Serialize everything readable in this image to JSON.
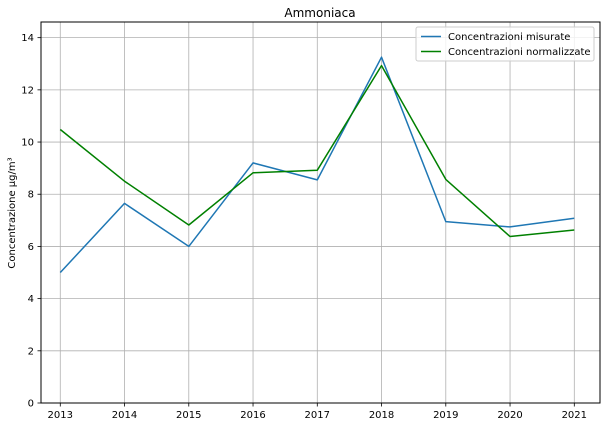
{
  "chart_data": {
    "type": "line",
    "title": "Ammoniaca",
    "xlabel": "",
    "ylabel": "Concentrazione μg/m³",
    "x": [
      2013,
      2014,
      2015,
      2016,
      2017,
      2018,
      2019,
      2020,
      2021
    ],
    "xlim": [
      2012.7,
      2021.4
    ],
    "ylim": [
      0,
      14.6
    ],
    "xticks": [
      "2013",
      "2014",
      "2015",
      "2016",
      "2017",
      "2018",
      "2019",
      "2020",
      "2021"
    ],
    "yticks": [
      "0",
      "2",
      "4",
      "6",
      "8",
      "10",
      "12",
      "14"
    ],
    "grid": true,
    "legend_position": "top-right",
    "series": [
      {
        "name": "Concentrazioni misurate",
        "color": "#1f77b4",
        "values": [
          5.0,
          7.65,
          6.0,
          9.2,
          8.55,
          13.25,
          6.95,
          6.75,
          7.08
        ]
      },
      {
        "name": "Concentrazioni normalizzate",
        "color": "#008000",
        "values": [
          10.48,
          8.5,
          6.82,
          8.82,
          8.92,
          12.93,
          8.57,
          6.38,
          6.63
        ]
      }
    ]
  }
}
